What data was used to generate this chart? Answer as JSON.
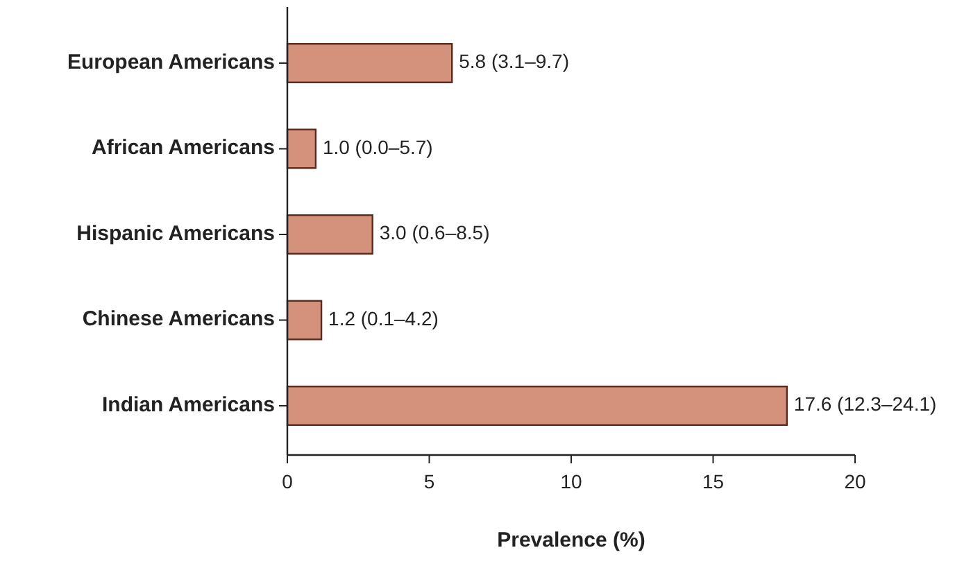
{
  "chart_data": {
    "type": "bar",
    "orientation": "horizontal",
    "categories": [
      "European Americans",
      "African Americans",
      "Hispanic Americans",
      "Chinese Americans",
      "Indian Americans"
    ],
    "values": [
      5.8,
      1.0,
      3.0,
      1.2,
      17.6
    ],
    "value_labels": [
      "5.8 (3.1–9.7)",
      "1.0 (0.0–5.7)",
      "3.0 (0.6–8.5)",
      "1.2 (0.1–4.2)",
      "17.6 (12.3–24.1)"
    ],
    "color": "#d4917b",
    "xlim": [
      0,
      20
    ],
    "xticks": [
      0,
      5,
      10,
      15,
      20
    ],
    "xlabel": "Prevalence (%)",
    "grid": false
  }
}
